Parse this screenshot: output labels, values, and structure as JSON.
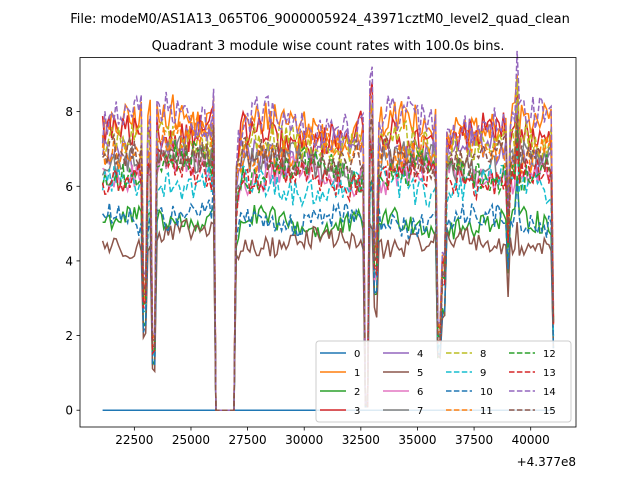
{
  "chart_data": {
    "type": "line",
    "suptitle": "File: modeM0/AS1A13_065T06_9000005924_43971cztM0_level2_quad_clean",
    "title": "Quadrant 3 module wise count rates with 100.0s bins.",
    "xlabel": "",
    "ylabel": "",
    "x_offset_label": "+4.377e8",
    "xlim": [
      20100,
      42000
    ],
    "ylim": [
      -0.45,
      9.45
    ],
    "x_ticks": [
      22500,
      25000,
      27500,
      30000,
      32500,
      35000,
      37500,
      40000
    ],
    "x_tick_labels": [
      "22500",
      "25000",
      "27500",
      "30000",
      "32500",
      "35000",
      "37500",
      "40000"
    ],
    "y_ticks": [
      0,
      2,
      4,
      6,
      8
    ],
    "y_tick_labels": [
      "0",
      "2",
      "4",
      "6",
      "8"
    ],
    "x_range": [
      21100,
      41000
    ],
    "bin_seconds": 100,
    "legend": {
      "position": "lower-right",
      "columns": 4
    },
    "series": [
      {
        "name": "0",
        "color": "#1f77b4",
        "style": "solid",
        "level": 0.0
      },
      {
        "name": "1",
        "color": "#ff7f0e",
        "style": "solid",
        "level": 7.6
      },
      {
        "name": "2",
        "color": "#2ca02c",
        "style": "solid",
        "level": 5.0
      },
      {
        "name": "3",
        "color": "#d62728",
        "style": "solid",
        "level": 7.3
      },
      {
        "name": "4",
        "color": "#9467bd",
        "style": "solid",
        "level": 6.9
      },
      {
        "name": "5",
        "color": "#8c564b",
        "style": "solid",
        "level": 4.5
      },
      {
        "name": "6",
        "color": "#e377c2",
        "style": "solid",
        "level": 6.3
      },
      {
        "name": "7",
        "color": "#7f7f7f",
        "style": "solid",
        "level": 6.6
      },
      {
        "name": "8",
        "color": "#bcbd22",
        "style": "dashed",
        "level": 7.1
      },
      {
        "name": "9",
        "color": "#17becf",
        "style": "dashed",
        "level": 6.0
      },
      {
        "name": "10",
        "color": "#1f77b4",
        "style": "dashed",
        "level": 5.1
      },
      {
        "name": "11",
        "color": "#ff7f0e",
        "style": "dashed",
        "level": 7.0
      },
      {
        "name": "12",
        "color": "#2ca02c",
        "style": "dashed",
        "level": 6.4
      },
      {
        "name": "13",
        "color": "#d62728",
        "style": "dashed",
        "level": 6.2
      },
      {
        "name": "14",
        "color": "#9467bd",
        "style": "dashed",
        "level": 7.7
      },
      {
        "name": "15",
        "color": "#8c564b",
        "style": "dashed",
        "level": 6.7
      }
    ],
    "events": [
      {
        "type": "gap",
        "from": 26100,
        "to": 26900,
        "value": 0.0
      },
      {
        "type": "dip",
        "at": 22950,
        "depth": 0.55
      },
      {
        "type": "dip",
        "at": 23350,
        "depth": 0.75
      },
      {
        "type": "dip",
        "at": 32750,
        "depth": 0.98
      },
      {
        "type": "dip",
        "at": 33150,
        "depth": 0.4
      },
      {
        "type": "dip",
        "at": 35950,
        "depth": 0.7
      },
      {
        "type": "dip",
        "at": 36150,
        "depth": 0.45
      },
      {
        "type": "dip",
        "at": 39000,
        "depth": 0.3
      },
      {
        "type": "dip",
        "at": 41000,
        "depth": 0.65
      },
      {
        "type": "spike",
        "at": 26000,
        "height": 0.9
      },
      {
        "type": "spike",
        "at": 32950,
        "height": 1.0
      },
      {
        "type": "spike",
        "at": 39400,
        "height": 1.1
      }
    ]
  }
}
